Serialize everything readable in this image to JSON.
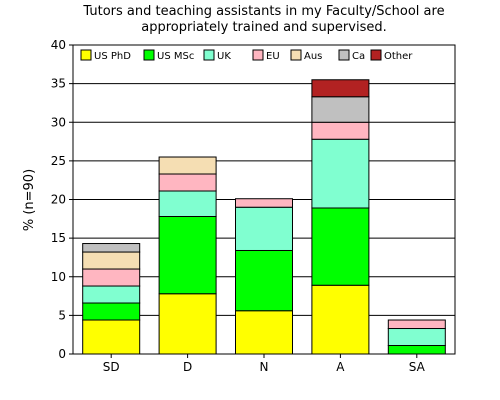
{
  "chart_data": {
    "type": "bar",
    "stacked": true,
    "title_lines": [
      "Tutors and teaching assistants in my Faculty/School are",
      "appropriately trained and supervised."
    ],
    "xlabel": "",
    "ylabel": "% (n=90)",
    "ylim": [
      0,
      40
    ],
    "yticks": [
      0,
      5,
      10,
      15,
      20,
      25,
      30,
      35,
      40
    ],
    "grid": "horizontal",
    "legend_placement": "top",
    "categories": [
      "SD",
      "D",
      "N",
      "A",
      "SA"
    ],
    "series": [
      {
        "name": "US PhD",
        "color": "#ffff00",
        "values": [
          4.4,
          7.8,
          5.6,
          8.9,
          0
        ]
      },
      {
        "name": "US MSc",
        "color": "#00ff00",
        "values": [
          2.2,
          10.0,
          7.8,
          10.0,
          1.1
        ]
      },
      {
        "name": "UK",
        "color": "#80ffd0",
        "values": [
          2.2,
          3.3,
          5.6,
          8.9,
          2.2
        ]
      },
      {
        "name": "EU",
        "color": "#ffb6c1",
        "values": [
          2.2,
          2.2,
          1.1,
          2.2,
          1.1
        ]
      },
      {
        "name": "Aus",
        "color": "#f5deb3",
        "values": [
          2.2,
          2.2,
          0,
          0,
          0
        ]
      },
      {
        "name": "Ca",
        "color": "#c0c0c0",
        "values": [
          1.1,
          0,
          0,
          3.3,
          0
        ]
      },
      {
        "name": "Other",
        "color": "#b22222",
        "values": [
          0,
          0,
          0,
          2.2,
          0
        ]
      }
    ]
  }
}
